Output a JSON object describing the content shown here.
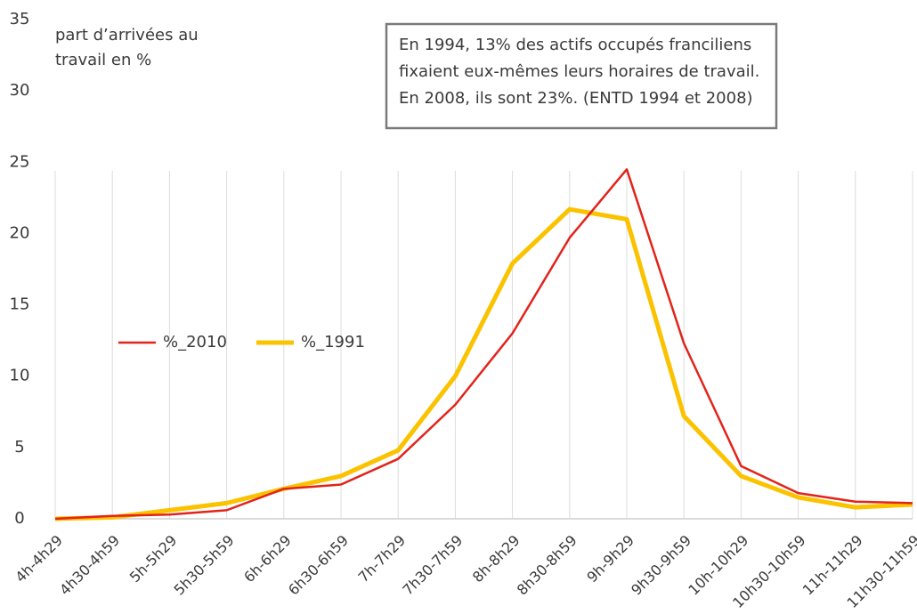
{
  "chart_data": {
    "type": "line",
    "ylabel": [
      "part d’arrivées au",
      "travail en %"
    ],
    "annotation": [
      "En 1994, 13% des actifs occupés franciliens",
      "fixaient eux-mêmes leurs horaires de travail.",
      "En 2008, ils sont 23%. (ENTD 1994 et 2008)"
    ],
    "categories": [
      "4h-4h29",
      "4h30-4h59",
      "5h-5h29",
      "5h30-5h59",
      "6h-6h29",
      "6h30-6h59",
      "7h-7h29",
      "7h30-7h59",
      "8h-8h29",
      "8h30-8h59",
      "9h-9h29",
      "9h30-9h59",
      "10h-10h29",
      "10h30-10h59",
      "11h-11h29",
      "11h30-11h59"
    ],
    "series": [
      {
        "name": "%_2010",
        "color": "#e2231a",
        "values": [
          0,
          0.2,
          0.3,
          0.6,
          2.1,
          2.4,
          4.2,
          8,
          13,
          19.7,
          24.5,
          12.3,
          3.7,
          1.8,
          1.2,
          1.1
        ]
      },
      {
        "name": "%_1991",
        "color": "#fbc200",
        "values": [
          0,
          0.1,
          0.6,
          1.1,
          2.1,
          3.0,
          4.8,
          10,
          17.9,
          21.7,
          21.0,
          7.2,
          3.0,
          1.5,
          0.8,
          1.0
        ]
      }
    ],
    "ylim": [
      0,
      35
    ],
    "yticks": [
      0,
      5,
      10,
      15,
      20,
      25,
      30,
      35
    ],
    "grid": true,
    "legend": "left"
  }
}
